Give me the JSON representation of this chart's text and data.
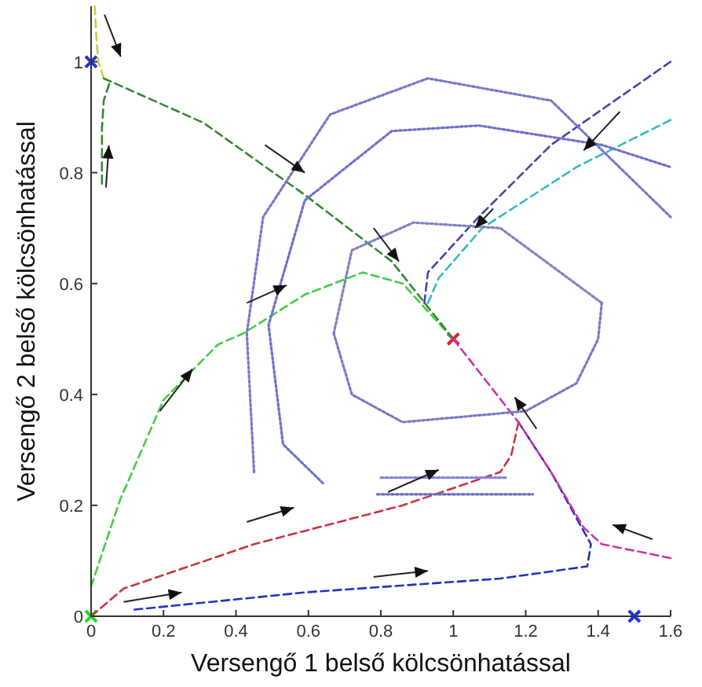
{
  "chart_data": {
    "type": "line",
    "xlabel": "Versengő 1 belső kölcsönhatással",
    "ylabel": "Versengő 2 belső kölcsönhatással",
    "xlim": [
      0,
      1.6
    ],
    "ylim": [
      0,
      1.1
    ],
    "xticks": [
      0,
      0.2,
      0.4,
      0.6,
      0.8,
      1,
      1.2,
      1.4,
      1.6
    ],
    "yticks": [
      0,
      0.2,
      0.4,
      0.6,
      0.8,
      1
    ],
    "grid": false,
    "marker": "none",
    "series": [
      {
        "color": "#44cc44",
        "line_style": "dashed",
        "x": [
          0,
          0.08,
          0.2,
          0.35,
          0.42,
          0.59,
          0.75,
          0.86,
          0.93,
          1.0
        ],
        "values": [
          0.054,
          0.21,
          0.39,
          0.49,
          0.51,
          0.58,
          0.62,
          0.6,
          0.55,
          0.5
        ]
      },
      {
        "color": "#cccc44",
        "line_style": "dashed",
        "x": [
          0.01,
          0.015,
          0.02,
          0.035
        ],
        "values": [
          1.1,
          1.04,
          1.0,
          0.97
        ]
      },
      {
        "color": "#338833",
        "line_style": "dashed",
        "x": [
          0.03,
          0.03,
          0.035,
          0.05
        ],
        "values": [
          0.78,
          0.88,
          0.93,
          0.96
        ]
      },
      {
        "color": "#338833",
        "line_style": "dashed",
        "x": [
          0.035,
          0.31,
          0.59,
          0.83,
          1.0
        ],
        "values": [
          0.97,
          0.89,
          0.76,
          0.64,
          0.5
        ]
      },
      {
        "color": "#4444aa",
        "line_style": "dashed",
        "x": [
          1.6,
          1.27,
          1.07,
          0.93,
          0.92
        ],
        "values": [
          1.0,
          0.85,
          0.72,
          0.62,
          0.565
        ]
      },
      {
        "color": "#33bbbb",
        "line_style": "dashed",
        "x": [
          1.6,
          1.34,
          1.08,
          0.96,
          0.93
        ],
        "values": [
          0.895,
          0.81,
          0.7,
          0.61,
          0.565
        ]
      },
      {
        "color": "#cc3344",
        "line_style": "dashed",
        "x": [
          0,
          0.09,
          0.45,
          0.86,
          1.13,
          1.16,
          1.18
        ],
        "values": [
          0,
          0.05,
          0.13,
          0.2,
          0.26,
          0.29,
          0.35
        ]
      },
      {
        "color": "#2233bb",
        "line_style": "dashed",
        "x": [
          0.12,
          0.59,
          1.13,
          1.37,
          1.38,
          1.27,
          1.18
        ],
        "values": [
          0.012,
          0.043,
          0.068,
          0.09,
          0.13,
          0.26,
          0.35
        ]
      },
      {
        "color": "#cc33aa",
        "line_style": "dashed",
        "x": [
          1.6,
          1.41,
          1.36,
          1.27,
          1.18,
          1.0
        ],
        "values": [
          0.105,
          0.13,
          0.16,
          0.26,
          0.35,
          0.5
        ]
      },
      {
        "color": "#7777cc",
        "line_style": "dotted",
        "x": [
          0.45,
          0.43,
          0.475,
          0.66,
          0.93,
          1.27,
          1.6
        ],
        "values": [
          0.26,
          0.51,
          0.72,
          0.905,
          0.97,
          0.93,
          0.72
        ]
      },
      {
        "color": "#6f6fd0",
        "line_style": "dotted",
        "x": [
          0.64,
          0.53,
          0.49,
          0.59,
          0.83,
          1.07,
          1.41,
          1.6
        ],
        "values": [
          0.24,
          0.31,
          0.525,
          0.75,
          0.875,
          0.885,
          0.85,
          0.81
        ]
      },
      {
        "color": "#8080c4",
        "line_style": "dotted",
        "x": [
          0.67,
          0.72,
          0.89,
          1.13,
          1.41
        ],
        "values": [
          0.51,
          0.66,
          0.71,
          0.7,
          0.565
        ]
      },
      {
        "color": "#7878c8",
        "line_style": "dotted",
        "x": [
          1.41,
          1.4,
          1.34,
          1.2,
          0.86,
          0.72,
          0.67
        ],
        "values": [
          0.565,
          0.5,
          0.42,
          0.37,
          0.35,
          0.4,
          0.51
        ]
      },
      {
        "color": "#6a6ac0",
        "line_style": "dotted",
        "x": [
          0.79,
          1.22
        ],
        "values": [
          0.22,
          0.22
        ]
      },
      {
        "color": "#8484d6",
        "line_style": "dotted",
        "x": [
          0.8,
          1.15
        ],
        "values": [
          0.25,
          0.25
        ]
      },
      {
        "type": "scatter",
        "marker": "cross",
        "x": [
          0,
          1,
          1.5,
          0
        ],
        "values": [
          1,
          0.5,
          0,
          0
        ],
        "colors": [
          "#2233dd",
          "#dd2233",
          "#2233dd",
          "#22dd22"
        ]
      }
    ]
  }
}
